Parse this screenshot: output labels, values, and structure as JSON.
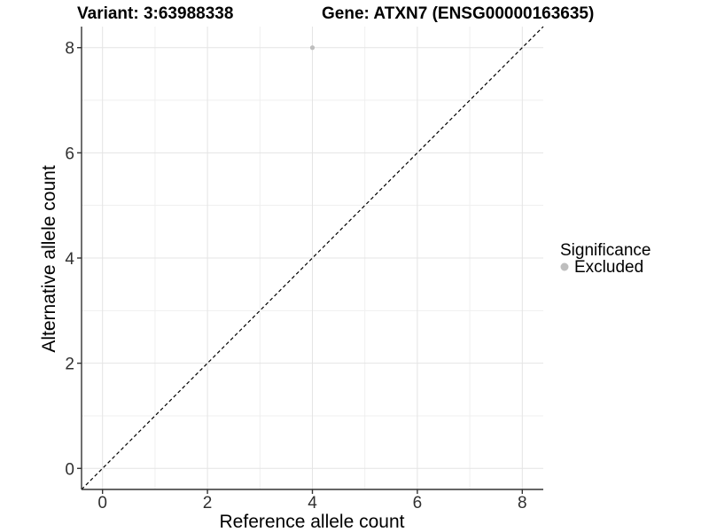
{
  "header": {
    "variant_title": "Variant: 3:63988338",
    "gene_title": "Gene: ATXN7 (ENSG00000163635)"
  },
  "chart_data": {
    "type": "scatter",
    "title": "Variant: 3:63988338    Gene: ATXN7 (ENSG00000163635)",
    "xlabel": "Reference allele count",
    "ylabel": "Alternative allele count",
    "xlim": [
      -0.4,
      8.4
    ],
    "ylim": [
      -0.4,
      8.4
    ],
    "x_ticks": [
      0,
      2,
      4,
      6,
      8
    ],
    "y_ticks": [
      0,
      2,
      4,
      6,
      8
    ],
    "x_minor_gridlines": [
      1,
      3,
      5,
      7
    ],
    "y_minor_gridlines": [
      1,
      3,
      5,
      7
    ],
    "grid": true,
    "legend_position": "right",
    "series": [
      {
        "name": "Excluded",
        "color": "#bebebe",
        "points": [
          [
            4,
            8
          ]
        ]
      }
    ],
    "reference_line": {
      "type": "identity y=x",
      "style": "dashed",
      "color": "#000000"
    }
  },
  "legend": {
    "title": "Significance",
    "items": [
      {
        "label": "Excluded",
        "color": "#bebebe"
      }
    ]
  },
  "styles": {
    "background": "#ffffff",
    "grid_major_color": "#e4e4e4",
    "grid_minor_color": "#efefef",
    "axis_color": "#333333",
    "tick_label_color": "#303030",
    "point_color": "#bebebe"
  }
}
